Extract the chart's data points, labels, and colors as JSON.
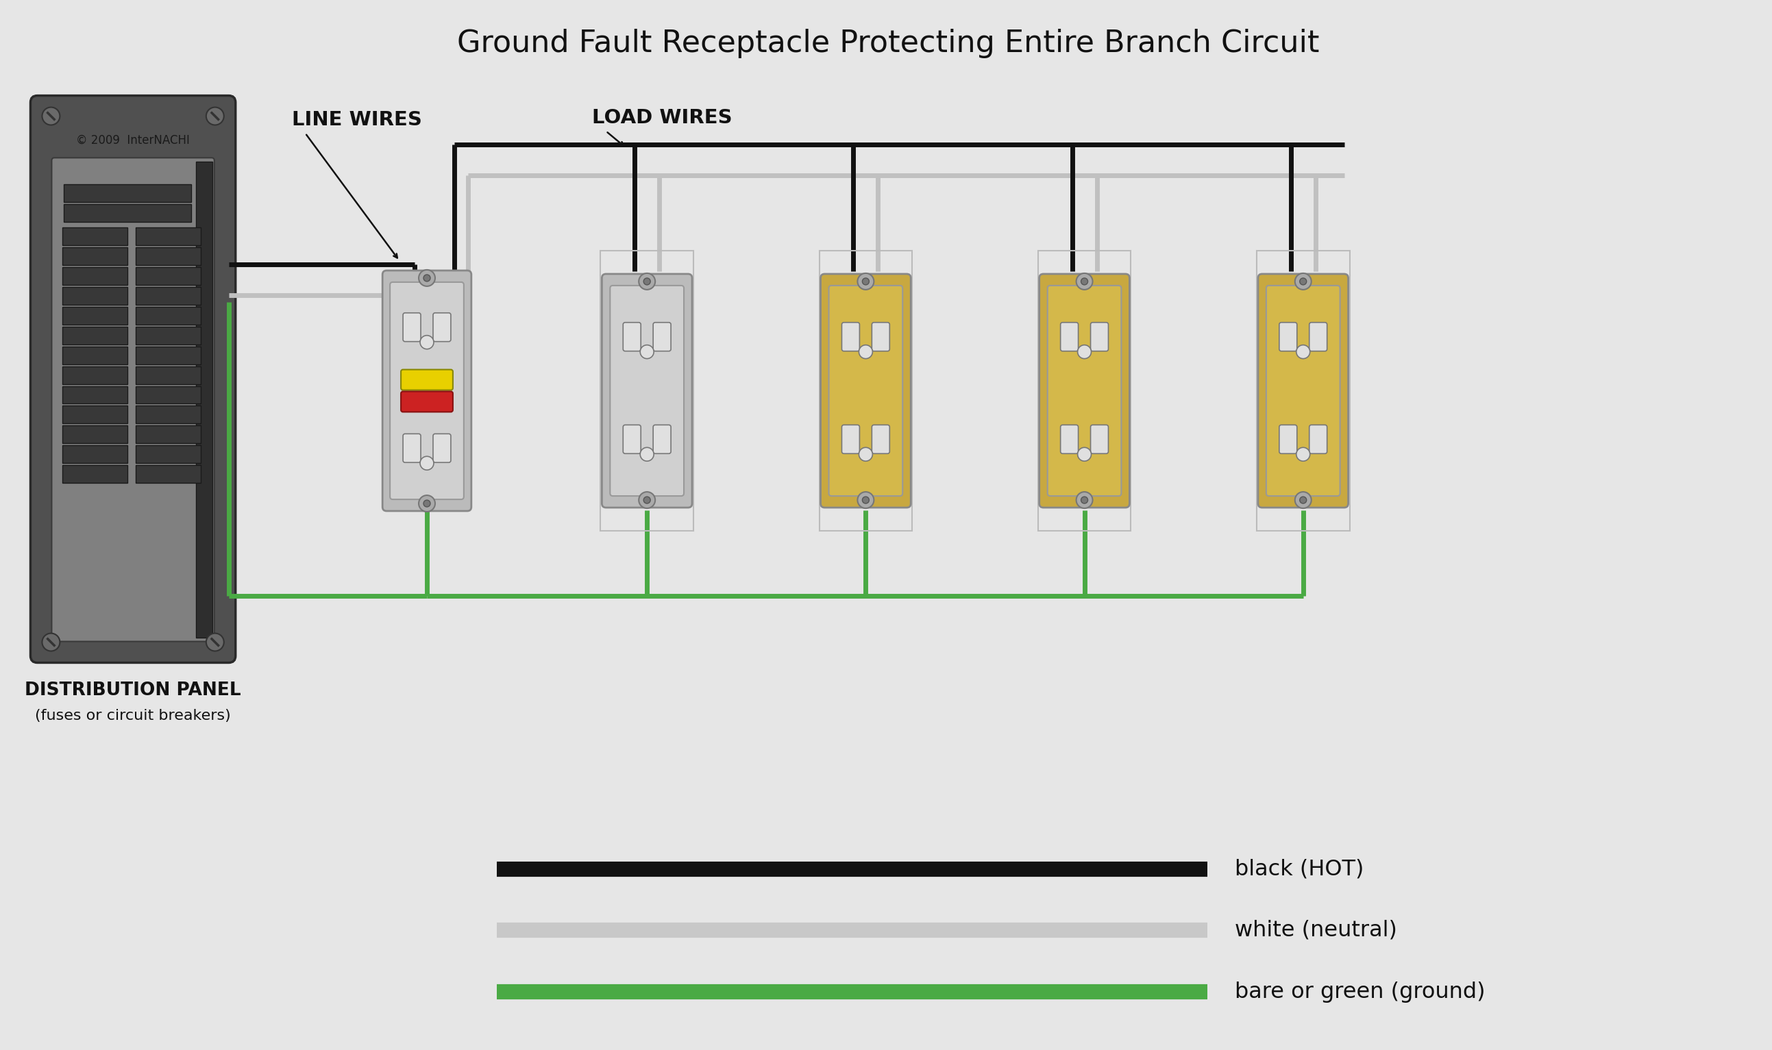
{
  "title": "Ground Fault Receptacle Protecting Entire Branch Circuit",
  "background_color": "#e6e6e6",
  "title_fontsize": 32,
  "title_color": "#111111",
  "line_wires_label": "LINE WIRES",
  "load_wires_label": "LOAD WIRES",
  "distribution_panel_label1": "DISTRIBUTION PANEL",
  "distribution_panel_label2": "(fuses or circuit breakers)",
  "copyright_text": "© 2009  InterNACHI",
  "legend_items": [
    {
      "label": "black (HOT)",
      "color": "#111111"
    },
    {
      "label": "white (neutral)",
      "color": "#c8c8c8"
    },
    {
      "label": "bare or green (ground)",
      "color": "#4aaa44"
    }
  ],
  "hot_color": "#111111",
  "neutral_color": "#c0c0c0",
  "ground_color": "#4aaa44",
  "panel_dark": "#505050",
  "panel_mid": "#808080",
  "wire_lw": 5,
  "legend_lw": 16
}
